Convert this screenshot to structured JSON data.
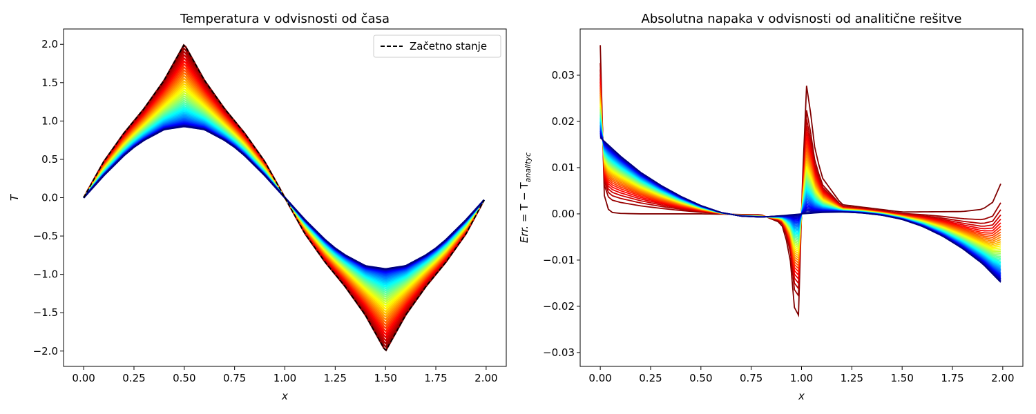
{
  "chart_data": [
    {
      "type": "line",
      "title": "Temperatura v odvisnosti od časa",
      "xlabel": "x",
      "ylabel": "T",
      "xlim": [
        -0.1,
        2.1
      ],
      "ylim": [
        -2.2,
        2.2
      ],
      "xticks": [
        0.0,
        0.25,
        0.5,
        0.75,
        1.0,
        1.25,
        1.5,
        1.75,
        2.0
      ],
      "xtick_labels": [
        "0.00",
        "0.25",
        "0.50",
        "0.75",
        "1.00",
        "1.25",
        "1.50",
        "1.75",
        "2.00"
      ],
      "yticks": [
        -2.0,
        -1.5,
        -1.0,
        -0.5,
        0.0,
        0.5,
        1.0,
        1.5,
        2.0
      ],
      "ytick_labels": [
        "−2.0",
        "−1.5",
        "−1.0",
        "−0.5",
        "0.0",
        "0.5",
        "1.0",
        "1.5",
        "2.0"
      ],
      "legend": {
        "position": "top-right",
        "entries": [
          {
            "label": "Začetno stanje",
            "style": "dashed",
            "color": "#000000"
          }
        ]
      },
      "colormap": "jet",
      "curve_count": 40,
      "initial_state": {
        "x": [
          0.0,
          0.1,
          0.2,
          0.25,
          0.3,
          0.4,
          0.5,
          0.6,
          0.7,
          0.75,
          0.8,
          0.9,
          1.0,
          1.1,
          1.2,
          1.25,
          1.3,
          1.4,
          1.5,
          1.6,
          1.7,
          1.75,
          1.8,
          1.9,
          1.99
        ],
        "y": [
          0.0,
          0.47,
          0.84,
          1.0,
          1.16,
          1.53,
          2.0,
          1.53,
          1.16,
          1.0,
          0.84,
          0.47,
          0.0,
          -0.47,
          -0.84,
          -1.0,
          -1.16,
          -1.53,
          -2.0,
          -1.53,
          -1.16,
          -1.0,
          -0.84,
          -0.47,
          -0.03
        ]
      },
      "final_state": {
        "x": [
          0.0,
          0.1,
          0.2,
          0.25,
          0.3,
          0.4,
          0.5,
          0.6,
          0.7,
          0.75,
          0.8,
          0.9,
          1.0,
          1.1,
          1.2,
          1.25,
          1.3,
          1.4,
          1.5,
          1.6,
          1.7,
          1.75,
          1.8,
          1.9,
          1.99
        ],
        "y": [
          0.0,
          0.29,
          0.55,
          0.66,
          0.75,
          0.89,
          0.93,
          0.89,
          0.75,
          0.66,
          0.55,
          0.29,
          0.0,
          -0.29,
          -0.55,
          -0.66,
          -0.75,
          -0.89,
          -0.93,
          -0.89,
          -0.75,
          -0.66,
          -0.55,
          -0.29,
          -0.03
        ]
      }
    },
    {
      "type": "line",
      "title": "Absolutna napaka v odvisnosti od analitične rešitve",
      "xlabel": "x",
      "ylabel_main": "Err.",
      "ylabel_eq": " = T − T",
      "ylabel_sub": "analityc",
      "xlim": [
        -0.1,
        2.1
      ],
      "ylim": [
        -0.033,
        0.04
      ],
      "xticks": [
        0.0,
        0.25,
        0.5,
        0.75,
        1.0,
        1.25,
        1.5,
        1.75,
        2.0
      ],
      "xtick_labels": [
        "0.00",
        "0.25",
        "0.50",
        "0.75",
        "1.00",
        "1.25",
        "1.50",
        "1.75",
        "2.00"
      ],
      "yticks": [
        -0.03,
        -0.02,
        -0.01,
        0.0,
        0.01,
        0.02,
        0.03
      ],
      "ytick_labels": [
        "−0.03",
        "−0.02",
        "−0.01",
        "0.00",
        "0.01",
        "0.02",
        "0.03"
      ],
      "colormap": "jet",
      "curve_count": 40,
      "first_curve": {
        "x": [
          0.0,
          0.02,
          0.04,
          0.06,
          0.1,
          0.2,
          0.5,
          0.8,
          0.9,
          0.94,
          0.96,
          0.98,
          1.0,
          1.02,
          1.04,
          1.06,
          1.1,
          1.2,
          1.5,
          1.8,
          1.9,
          1.95,
          1.99
        ],
        "y": [
          0.0365,
          0.004,
          0.001,
          0.0003,
          0.0001,
          0.0,
          0.0,
          -0.0002,
          -0.002,
          -0.008,
          -0.0175,
          -0.029,
          0.0,
          0.029,
          0.024,
          0.0155,
          0.008,
          0.002,
          0.0004,
          0.0005,
          0.001,
          0.0025,
          0.0065
        ]
      },
      "last_curve": {
        "x": [
          0.0,
          0.1,
          0.2,
          0.3,
          0.4,
          0.5,
          0.6,
          0.7,
          0.8,
          0.9,
          1.0,
          1.1,
          1.2,
          1.3,
          1.4,
          1.5,
          1.6,
          1.7,
          1.8,
          1.9,
          1.99
        ],
        "y": [
          0.0165,
          0.0125,
          0.009,
          0.0062,
          0.0038,
          0.0018,
          0.0003,
          -0.0005,
          -0.0007,
          -0.0004,
          0.0,
          0.0003,
          0.0004,
          0.0002,
          -0.0003,
          -0.0012,
          -0.0027,
          -0.0048,
          -0.0075,
          -0.0108,
          -0.0148
        ]
      }
    }
  ]
}
